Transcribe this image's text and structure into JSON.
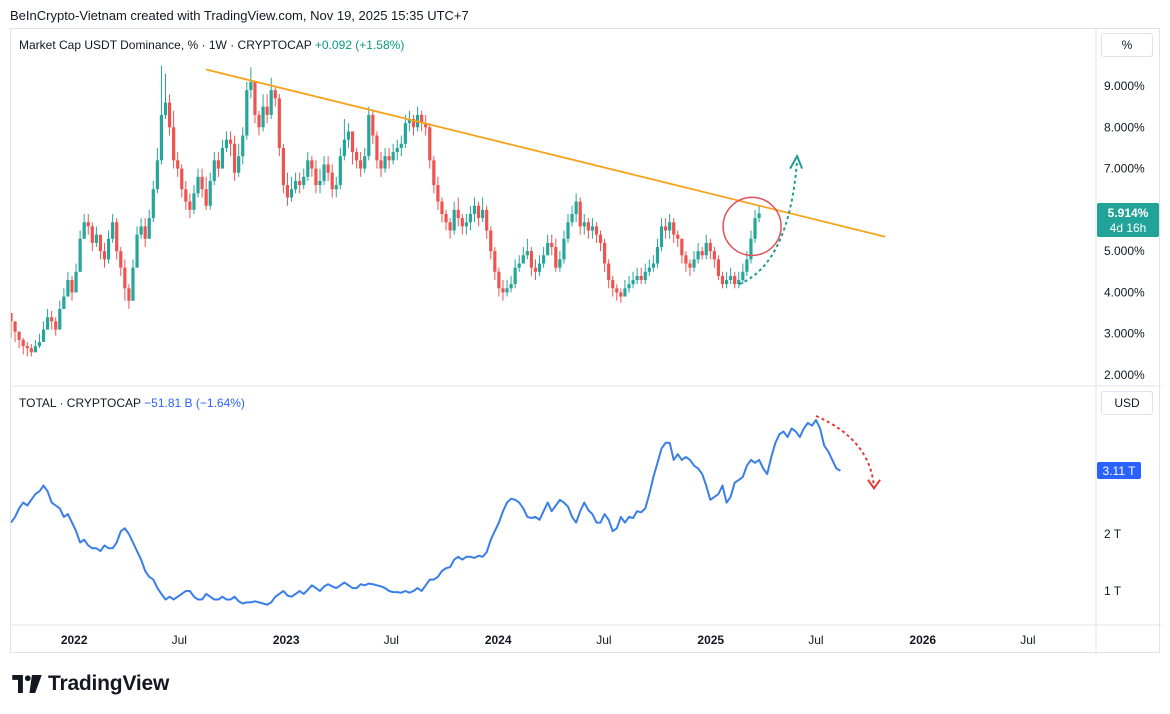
{
  "header": {
    "credit": "BeInCrypto-Vietnam created with TradingView.com, Nov 19, 2025 15:35 UTC+7"
  },
  "footer": {
    "brand": "TradingView",
    "logo_icon": "tradingview-logo-icon"
  },
  "colors": {
    "up": "#26a69a",
    "down": "#ef5350",
    "trendline": "#f7a21b",
    "total_line": "#3a7ee8",
    "dominance_badge": "#22a39a",
    "total_badge": "#2962ff",
    "circle": "#e0505a",
    "up_arrow": "#1a9e8f",
    "down_arrow": "#e53935"
  },
  "chart_data": [
    {
      "type": "candlestick",
      "symbol": "Market Cap USDT Dominance",
      "unit": "%",
      "interval": "1W",
      "exchange": "CRYPTOCAP",
      "change": "+0.092",
      "change_pct": "(+1.58%)",
      "last_value": "5.914%",
      "countdown": "4d 16h",
      "axis_unit_label": "%",
      "ylim": [
        1.8,
        10.0
      ],
      "y_ticks": [
        "9.000%",
        "8.000%",
        "7.000%",
        "6.000%",
        "5.000%",
        "4.000%",
        "3.000%",
        "2.000%"
      ],
      "y_tick_values": [
        9,
        8,
        7,
        6,
        5,
        4,
        3,
        2
      ],
      "weekly_close": [
        3.3,
        3.05,
        2.85,
        2.7,
        2.65,
        2.55,
        2.7,
        2.8,
        3.1,
        3.4,
        3.3,
        3.1,
        3.6,
        3.9,
        4.3,
        4.0,
        4.5,
        5.3,
        5.7,
        5.6,
        5.2,
        5.4,
        5.0,
        4.8,
        5.3,
        5.7,
        5.0,
        4.6,
        4.1,
        3.8,
        4.6,
        5.4,
        5.6,
        5.3,
        5.8,
        6.5,
        7.2,
        8.3,
        8.6,
        8.0,
        7.2,
        7.0,
        6.5,
        6.2,
        6.0,
        6.4,
        6.8,
        6.5,
        6.1,
        6.7,
        7.2,
        7.0,
        7.5,
        7.7,
        7.6,
        6.9,
        7.3,
        7.8,
        8.9,
        9.1,
        8.3,
        8.0,
        8.5,
        8.3,
        8.9,
        8.7,
        7.5,
        6.6,
        6.3,
        6.5,
        6.7,
        6.6,
        6.8,
        7.2,
        7.0,
        6.6,
        6.7,
        7.1,
        6.9,
        6.5,
        6.6,
        7.3,
        7.7,
        7.9,
        7.4,
        7.2,
        7.0,
        7.3,
        8.3,
        7.8,
        7.2,
        7.0,
        7.3,
        7.2,
        7.4,
        7.5,
        7.6,
        8.1,
        8.2,
        8.0,
        8.3,
        8.1,
        8.0,
        7.2,
        6.6,
        6.2,
        5.9,
        5.7,
        5.5,
        6.0,
        5.8,
        5.6,
        5.7,
        5.9,
        6.1,
        5.8,
        6.0,
        5.5,
        5.0,
        4.5,
        4.1,
        4.0,
        4.1,
        4.2,
        4.6,
        4.7,
        4.9,
        5.0,
        4.6,
        4.5,
        4.7,
        4.9,
        5.2,
        5.1,
        4.6,
        4.8,
        5.3,
        5.7,
        5.9,
        6.2,
        5.6,
        5.7,
        5.5,
        5.6,
        5.4,
        5.2,
        4.7,
        4.3,
        4.1,
        4.0,
        3.9,
        4.1,
        4.2,
        4.3,
        4.4,
        4.3,
        4.5,
        4.6,
        4.7,
        5.1,
        5.6,
        5.5,
        5.7,
        5.4,
        5.3,
        4.9,
        4.7,
        4.6,
        4.8,
        5.0,
        4.9,
        5.2,
        5.0,
        4.8,
        4.4,
        4.2,
        4.3,
        4.4,
        4.2,
        4.3,
        4.5,
        4.8,
        5.3,
        5.8,
        5.914
      ],
      "weekly_high": [
        3.5,
        3.3,
        3.05,
        2.9,
        2.8,
        2.75,
        2.85,
        3.0,
        3.3,
        3.6,
        3.55,
        3.4,
        3.8,
        4.1,
        4.5,
        4.4,
        4.7,
        5.5,
        5.9,
        5.9,
        5.7,
        5.6,
        5.4,
        5.2,
        5.5,
        5.9,
        5.8,
        5.1,
        4.8,
        4.2,
        4.8,
        5.6,
        5.8,
        5.8,
        6.0,
        6.7,
        7.5,
        9.5,
        9.3,
        8.8,
        8.4,
        7.4,
        7.1,
        6.7,
        6.4,
        6.6,
        7.0,
        7.0,
        6.8,
        6.9,
        7.4,
        7.4,
        7.7,
        7.9,
        7.9,
        7.8,
        7.6,
        8.0,
        9.1,
        9.45,
        9.0,
        8.4,
        8.8,
        8.8,
        9.2,
        9.0,
        8.8,
        7.6,
        6.9,
        6.8,
        6.9,
        6.9,
        7.0,
        7.4,
        7.3,
        7.2,
        7.0,
        7.3,
        7.3,
        7.1,
        6.8,
        7.5,
        8.2,
        8.1,
        7.9,
        7.5,
        7.4,
        7.5,
        8.5,
        8.4,
        7.9,
        7.4,
        7.5,
        7.5,
        7.6,
        7.7,
        7.8,
        8.3,
        8.4,
        8.3,
        8.5,
        8.4,
        8.3,
        8.1,
        7.3,
        6.8,
        6.3,
        6.0,
        5.8,
        6.2,
        6.3,
        5.9,
        5.9,
        6.1,
        6.3,
        6.2,
        6.3,
        6.1,
        5.6,
        5.1,
        4.6,
        4.3,
        4.3,
        4.4,
        4.8,
        4.9,
        5.1,
        5.3,
        5.1,
        4.8,
        4.9,
        5.1,
        5.4,
        5.4,
        5.3,
        5.0,
        5.5,
        5.9,
        6.1,
        6.4,
        6.3,
        5.9,
        5.8,
        5.8,
        5.7,
        5.5,
        5.3,
        4.8,
        4.4,
        4.2,
        4.1,
        4.3,
        4.4,
        4.5,
        4.6,
        4.6,
        4.7,
        4.8,
        4.9,
        5.3,
        5.8,
        5.8,
        5.9,
        5.8,
        5.5,
        5.3,
        5.0,
        4.8,
        5.0,
        5.2,
        5.1,
        5.4,
        5.3,
        5.1,
        4.9,
        4.5,
        4.5,
        4.6,
        4.5,
        4.5,
        4.7,
        5.0,
        5.5,
        6.0,
        6.1
      ],
      "weekly_low": [
        2.9,
        2.8,
        2.65,
        2.5,
        2.45,
        2.45,
        2.6,
        2.65,
        2.9,
        3.2,
        3.1,
        2.95,
        3.3,
        3.7,
        3.9,
        3.8,
        4.2,
        4.9,
        5.4,
        5.4,
        5.0,
        5.1,
        4.8,
        4.6,
        4.7,
        5.2,
        4.8,
        4.4,
        3.8,
        3.6,
        3.9,
        4.7,
        5.3,
        5.1,
        5.3,
        5.7,
        6.4,
        7.1,
        8.2,
        7.8,
        7.0,
        6.8,
        6.3,
        6.0,
        5.8,
        5.9,
        6.3,
        6.3,
        6.0,
        6.0,
        6.6,
        6.8,
        7.0,
        7.4,
        7.3,
        6.7,
        6.8,
        7.1,
        7.7,
        8.7,
        8.1,
        7.8,
        7.9,
        8.1,
        8.2,
        8.5,
        7.3,
        6.4,
        6.1,
        6.2,
        6.4,
        6.4,
        6.5,
        6.7,
        6.8,
        6.4,
        6.4,
        6.6,
        6.7,
        6.3,
        6.3,
        6.5,
        7.2,
        7.5,
        7.1,
        7.0,
        6.8,
        6.9,
        7.2,
        7.6,
        7.0,
        6.8,
        6.9,
        7.0,
        7.1,
        7.2,
        7.3,
        7.5,
        7.9,
        7.8,
        7.9,
        7.9,
        7.8,
        7.0,
        6.4,
        6.0,
        5.7,
        5.5,
        5.3,
        5.4,
        5.6,
        5.4,
        5.4,
        5.5,
        5.7,
        5.6,
        5.7,
        5.3,
        4.8,
        4.3,
        3.9,
        3.8,
        3.9,
        4.0,
        4.1,
        4.5,
        4.7,
        4.8,
        4.4,
        4.3,
        4.4,
        4.6,
        4.9,
        4.9,
        4.5,
        4.5,
        4.7,
        5.2,
        5.6,
        5.7,
        5.4,
        5.4,
        5.3,
        5.3,
        5.2,
        5.0,
        4.5,
        4.1,
        3.9,
        3.8,
        3.75,
        3.9,
        4.0,
        4.1,
        4.2,
        4.2,
        4.2,
        4.4,
        4.5,
        4.6,
        5.0,
        5.3,
        5.3,
        5.2,
        5.1,
        4.7,
        4.5,
        4.4,
        4.5,
        4.7,
        4.8,
        4.8,
        4.8,
        4.6,
        4.3,
        4.1,
        4.1,
        4.2,
        4.1,
        4.1,
        4.2,
        4.4,
        4.7,
        5.2,
        5.7
      ],
      "trendline": {
        "from": {
          "date": "2022-10-31",
          "value": 9.4
        },
        "to": {
          "date": "2026-01-12",
          "value": 5.35
        }
      },
      "annotations": [
        "red circle at breakout above trendline",
        "teal dotted arrow projecting upward"
      ]
    },
    {
      "type": "line",
      "symbol": "TOTAL",
      "exchange": "CRYPTOCAP",
      "change": "−51.81 B",
      "change_pct": "(−1.64%)",
      "last_value": "3.11 T",
      "axis_unit_label": "USD",
      "y_unit": "USD trillions",
      "ylim": [
        0.5,
        4.2
      ],
      "y_ticks": [
        "1 T",
        "2 T"
      ],
      "y_tick_values": [
        1,
        2
      ],
      "weekly_values": [
        2.2,
        2.3,
        2.45,
        2.55,
        2.5,
        2.6,
        2.7,
        2.75,
        2.85,
        2.75,
        2.55,
        2.5,
        2.45,
        2.3,
        2.35,
        2.2,
        2.05,
        1.85,
        1.9,
        1.8,
        1.75,
        1.75,
        1.7,
        1.8,
        1.75,
        1.75,
        1.85,
        2.05,
        2.1,
        2.0,
        1.85,
        1.7,
        1.55,
        1.35,
        1.25,
        1.2,
        1.05,
        0.95,
        0.85,
        0.9,
        0.85,
        0.9,
        0.95,
        1.0,
        1.0,
        0.9,
        0.85,
        0.85,
        0.95,
        0.9,
        0.85,
        0.85,
        0.9,
        0.85,
        0.85,
        0.9,
        0.82,
        0.78,
        0.8,
        0.8,
        0.82,
        0.8,
        0.78,
        0.76,
        0.8,
        0.9,
        0.95,
        1.0,
        0.92,
        0.9,
        0.95,
        1.0,
        0.95,
        1.02,
        1.1,
        1.05,
        1.0,
        1.08,
        1.12,
        1.08,
        1.05,
        1.1,
        1.15,
        1.1,
        1.05,
        1.05,
        1.12,
        1.1,
        1.13,
        1.12,
        1.1,
        1.08,
        1.05,
        1.0,
        0.98,
        0.98,
        0.97,
        1.0,
        0.97,
        1.0,
        1.05,
        1.0,
        1.1,
        1.2,
        1.2,
        1.25,
        1.35,
        1.4,
        1.42,
        1.55,
        1.6,
        1.55,
        1.6,
        1.6,
        1.58,
        1.62,
        1.6,
        1.68,
        1.9,
        2.05,
        2.2,
        2.4,
        2.55,
        2.62,
        2.6,
        2.55,
        2.45,
        2.3,
        2.28,
        2.3,
        2.25,
        2.4,
        2.55,
        2.4,
        2.5,
        2.6,
        2.55,
        2.48,
        2.3,
        2.2,
        2.4,
        2.55,
        2.42,
        2.35,
        2.2,
        2.2,
        2.35,
        2.25,
        2.05,
        2.1,
        2.3,
        2.2,
        2.3,
        2.28,
        2.4,
        2.38,
        2.45,
        2.7,
        3.0,
        3.25,
        3.5,
        3.6,
        3.6,
        3.3,
        3.4,
        3.3,
        3.35,
        3.3,
        3.2,
        3.15,
        3.05,
        2.85,
        2.6,
        2.65,
        2.7,
        2.85,
        2.55,
        2.65,
        2.9,
        2.95,
        3.0,
        3.2,
        3.3,
        3.25,
        3.3,
        3.15,
        3.05,
        3.35,
        3.6,
        3.75,
        3.8,
        3.7,
        3.85,
        3.8,
        3.7,
        3.85,
        3.95,
        3.9,
        4.0,
        3.85,
        3.55,
        3.45,
        3.3,
        3.15,
        3.11
      ],
      "annotations": [
        "red dotted arrow projecting downward from peak"
      ]
    }
  ],
  "x_axis": {
    "labels": [
      "2022",
      "Jul",
      "2023",
      "Jul",
      "2024",
      "Jul",
      "2025",
      "Jul",
      "2026",
      "Jul"
    ],
    "bold": [
      true,
      false,
      true,
      false,
      true,
      false,
      true,
      false,
      true,
      false
    ],
    "dates": [
      "2022-01-01",
      "2022-07-01",
      "2023-01-01",
      "2023-07-01",
      "2024-01-01",
      "2024-07-01",
      "2025-01-01",
      "2025-07-01",
      "2026-01-01",
      "2026-07-01"
    ]
  }
}
